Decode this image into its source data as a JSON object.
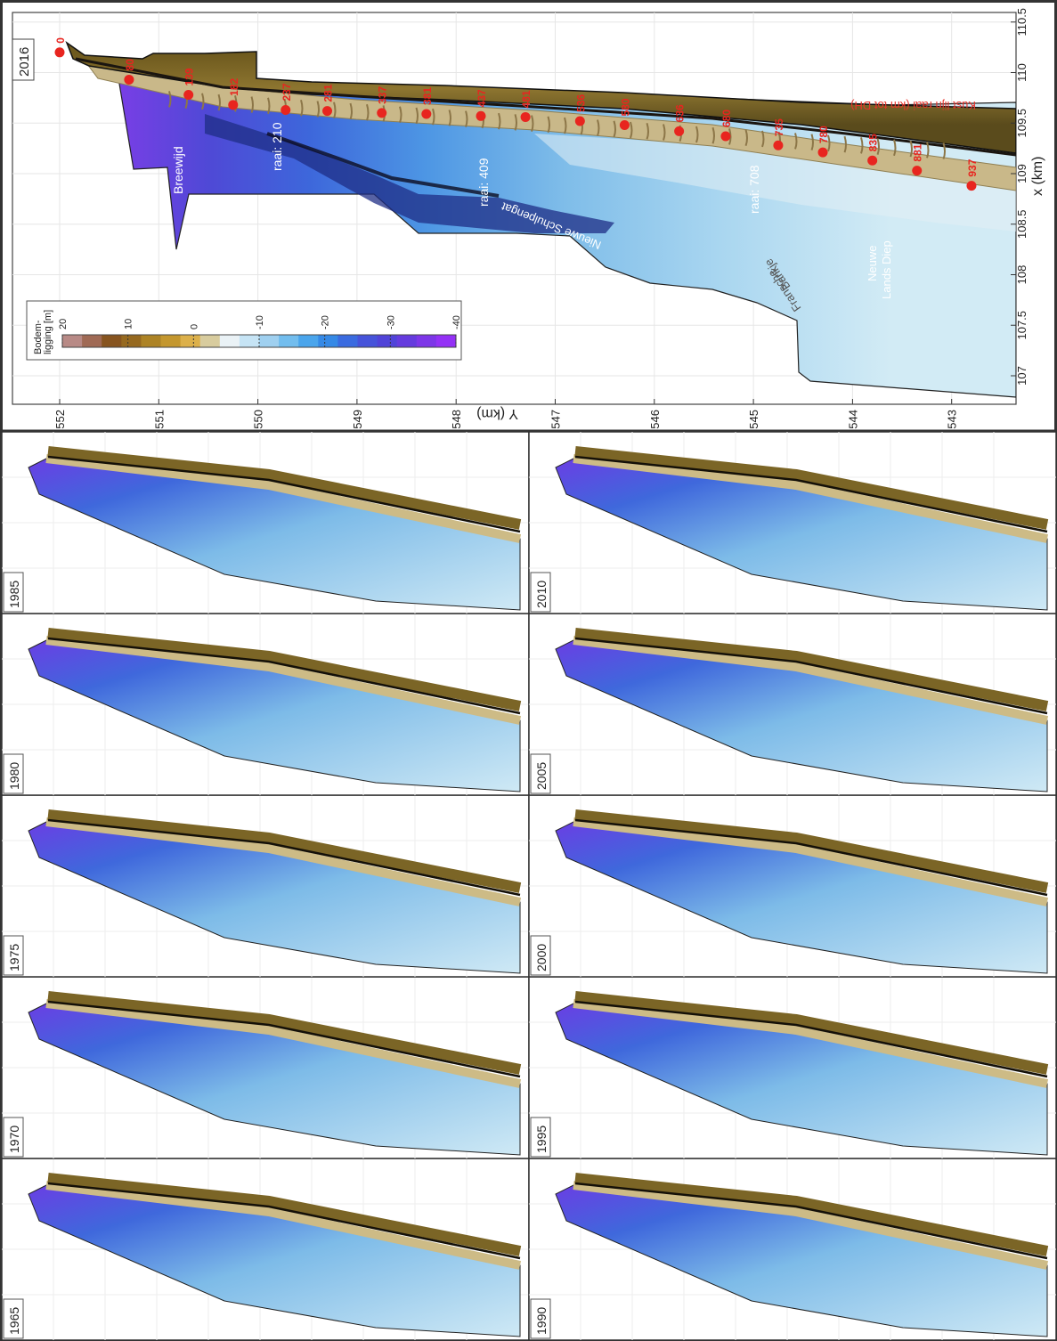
{
  "main_panel": {
    "year": "2016",
    "y_axis_label": "Y (km)",
    "x_axis_label": "x (km)",
    "y_ticks": [
      "552",
      "551",
      "550",
      "549",
      "548",
      "547",
      "546",
      "545",
      "544",
      "543"
    ],
    "x_ticks": [
      "107",
      "107.5",
      "108",
      "108.5",
      "109",
      "109.5",
      "110",
      "110.5"
    ],
    "transects": [
      {
        "km": "0",
        "x": 110.2,
        "y": 552.0
      },
      {
        "km": "80",
        "x": 109.93,
        "y": 551.3
      },
      {
        "km": "139",
        "x": 109.78,
        "y": 550.7
      },
      {
        "km": "182",
        "x": 109.68,
        "y": 550.25
      },
      {
        "km": "237",
        "x": 109.63,
        "y": 549.72
      },
      {
        "km": "281",
        "x": 109.62,
        "y": 549.3
      },
      {
        "km": "337",
        "x": 109.6,
        "y": 548.75
      },
      {
        "km": "381",
        "x": 109.59,
        "y": 548.3
      },
      {
        "km": "437",
        "x": 109.57,
        "y": 547.75
      },
      {
        "km": "481",
        "x": 109.56,
        "y": 547.3
      },
      {
        "km": "536",
        "x": 109.52,
        "y": 546.75
      },
      {
        "km": "580",
        "x": 109.48,
        "y": 546.3
      },
      {
        "km": "636",
        "x": 109.42,
        "y": 545.75
      },
      {
        "km": "680",
        "x": 109.37,
        "y": 545.28
      },
      {
        "km": "735",
        "x": 109.28,
        "y": 544.75
      },
      {
        "km": "780",
        "x": 109.21,
        "y": 544.3
      },
      {
        "km": "835",
        "x": 109.13,
        "y": 543.8
      },
      {
        "km": "881",
        "x": 109.03,
        "y": 543.35
      },
      {
        "km": "937",
        "x": 108.88,
        "y": 542.8
      }
    ],
    "labels": {
      "breewijd": "Breewijd",
      "raai_210": "raai: 210",
      "raai_409": "raai: 409",
      "raai_708": "raai: 708",
      "nieuwe_schulpengat": "Nieuwe Schulpengat",
      "fransche_line1": "Fransche",
      "fransche_line2": "Bankje",
      "neuwe_line1": "Neuwe",
      "neuwe_line2": "Lands Diep",
      "kustlijn": "Kust lijn raai (km tot DH)"
    }
  },
  "colorbar": {
    "title_line1": "Bodem-",
    "title_line2": "ligging [m]",
    "ticks": [
      "20",
      "10",
      "0",
      "-10",
      "-20",
      "-30",
      "-40"
    ],
    "colors": [
      "#b88a86",
      "#a06a55",
      "#87541f",
      "#96691f",
      "#ad8325",
      "#c4972e",
      "#dcb04a",
      "#d8cc9e",
      "#eaf2f6",
      "#c6e4f5",
      "#9fd0f0",
      "#72bdee",
      "#4aa5ec",
      "#3589e6",
      "#3a6be0",
      "#4653da",
      "#5043d8",
      "#653bde",
      "#7d36e8",
      "#9431f6"
    ]
  },
  "small_panels": [
    {
      "year": "1965"
    },
    {
      "year": "1970"
    },
    {
      "year": "1975"
    },
    {
      "year": "1980"
    },
    {
      "year": "1985"
    },
    {
      "year": "1990"
    },
    {
      "year": "1995"
    },
    {
      "year": "2000"
    },
    {
      "year": "2005"
    },
    {
      "year": "2010"
    }
  ]
}
